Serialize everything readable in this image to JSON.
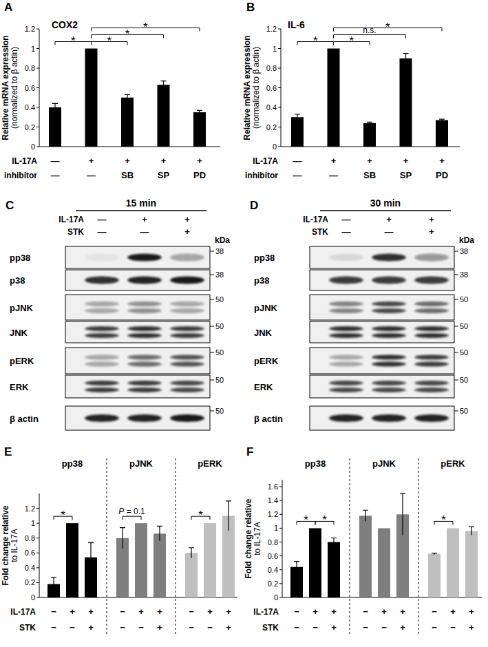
{
  "chart_data": [
    {
      "panel": "A",
      "type": "bar",
      "title": "COX2",
      "y_label": [
        "Relative mRNA expression",
        "(normalized to β actin)"
      ],
      "condition_rows": [
        {
          "label": "IL-17A",
          "values": [
            "—",
            "+",
            "+",
            "+",
            "+"
          ]
        },
        {
          "label": "inhibitor",
          "values": [
            "—",
            "—",
            "SB",
            "SP",
            "PD"
          ]
        }
      ],
      "values": [
        0.4,
        1,
        0.5,
        0.63,
        0.35
      ],
      "errors": [
        0.04,
        null,
        0.03,
        0.04,
        0.02
      ],
      "color": "#000000",
      "ylim": [
        0,
        1.2
      ],
      "yticks": [
        0,
        0.2,
        0.4,
        0.6,
        0.8,
        1,
        1.2
      ],
      "annotations": [
        {
          "from": 0,
          "to": 1,
          "label": "*"
        },
        {
          "from": 1,
          "to": 2,
          "label": "*"
        },
        {
          "from": 1,
          "to": 3,
          "label": "*"
        },
        {
          "from": 1,
          "to": 4,
          "label": "*"
        }
      ]
    },
    {
      "panel": "B",
      "type": "bar",
      "title": "IL-6",
      "y_label": [
        "Relative mRNA expression",
        "(normalized to β actin)"
      ],
      "condition_rows": [
        {
          "label": "IL-17A",
          "values": [
            "—",
            "+",
            "+",
            "+",
            "+"
          ]
        },
        {
          "label": "inhibitor",
          "values": [
            "—",
            "—",
            "SB",
            "SP",
            "PD"
          ]
        }
      ],
      "values": [
        0.3,
        1,
        0.24,
        0.9,
        0.27
      ],
      "errors": [
        0.03,
        null,
        0.01,
        0.05,
        0.01
      ],
      "color": "#000000",
      "ylim": [
        0,
        1.2
      ],
      "yticks": [
        0,
        0.2,
        0.4,
        0.6,
        0.8,
        1,
        1.2
      ],
      "annotations": [
        {
          "from": 0,
          "to": 1,
          "label": "*"
        },
        {
          "from": 1,
          "to": 2,
          "label": "*"
        },
        {
          "from": 1,
          "to": 3,
          "label": "n.s."
        },
        {
          "from": 1,
          "to": 4,
          "label": "*"
        }
      ]
    },
    {
      "panel": "E",
      "type": "bar",
      "y_label": [
        "Fold change relative",
        "to IL-17A"
      ],
      "condition_rows": [
        {
          "label": "IL-17A",
          "values": [
            "−",
            "+",
            "+"
          ]
        },
        {
          "label": "STK",
          "values": [
            "−",
            "−",
            "+"
          ]
        }
      ],
      "ylim": [
        0,
        1.4
      ],
      "yticks": [
        0,
        0.2,
        0.4,
        0.6,
        0.8,
        1,
        1.2
      ],
      "series": [
        {
          "name": "pp38",
          "color": "#000000",
          "values": [
            0.18,
            1,
            0.54
          ],
          "errors": [
            0.09,
            null,
            0.2
          ],
          "annotations": [
            {
              "from": 0,
              "to": 1,
              "label": "*"
            }
          ]
        },
        {
          "name": "pJNK",
          "color": "#7f7f7f",
          "values": [
            0.8,
            1,
            0.86
          ],
          "errors": [
            0.14,
            null,
            0.1
          ],
          "annotations": [
            {
              "from": 0,
              "to": 1,
              "label": "P = 0.1"
            }
          ]
        },
        {
          "name": "pERK",
          "color": "#bfbfbf",
          "values": [
            0.6,
            1,
            1.1
          ],
          "errors": [
            0.07,
            null,
            0.2
          ],
          "annotations": [
            {
              "from": 0,
              "to": 1,
              "label": "*"
            }
          ]
        }
      ]
    },
    {
      "panel": "F",
      "type": "bar",
      "y_label": [
        "Fold change relative",
        "to IL-17A"
      ],
      "condition_rows": [
        {
          "label": "IL-17A",
          "values": [
            "−",
            "+",
            "+"
          ]
        },
        {
          "label": "STK",
          "values": [
            "−",
            "−",
            "+"
          ]
        }
      ],
      "ylim": [
        0,
        1.7
      ],
      "yticks": [
        0,
        0.2,
        0.4,
        0.6,
        0.8,
        1,
        1.2,
        1.4,
        1.6
      ],
      "series": [
        {
          "name": "pp38",
          "color": "#000000",
          "values": [
            0.44,
            1,
            0.8
          ],
          "errors": [
            0.08,
            null,
            0.06
          ],
          "annotations": [
            {
              "from": 0,
              "to": 1,
              "label": "*"
            },
            {
              "from": 1,
              "to": 2,
              "label": "*"
            }
          ]
        },
        {
          "name": "pJNK",
          "color": "#7f7f7f",
          "values": [
            1.18,
            1,
            1.2
          ],
          "errors": [
            0.08,
            null,
            0.3
          ],
          "annotations": []
        },
        {
          "name": "pERK",
          "color": "#bfbfbf",
          "values": [
            0.63,
            1,
            0.96
          ],
          "errors": [
            0.01,
            null,
            0.06
          ],
          "annotations": [
            {
              "from": 0,
              "to": 1,
              "label": "*"
            }
          ]
        }
      ]
    }
  ],
  "blots": [
    {
      "panel": "C",
      "title": "15 min",
      "unit_label": "kDa",
      "condition_rows": [
        {
          "label": "IL-17A",
          "values": [
            "—",
            "+",
            "+"
          ]
        },
        {
          "label": "STK",
          "values": [
            "—",
            "—",
            "+"
          ]
        }
      ],
      "rows": [
        {
          "label": "pp38",
          "bands": 1,
          "intensity": [
            0.05,
            0.95,
            0.35
          ],
          "marker": 38
        },
        {
          "label": "p38",
          "bands": 1,
          "intensity": [
            0.85,
            0.9,
            0.95
          ],
          "marker": 38
        },
        {
          "label": "pJNK",
          "bands": 2,
          "intensity": [
            0.35,
            0.45,
            0.35
          ],
          "marker": 50
        },
        {
          "label": "JNK",
          "bands": 2,
          "intensity": [
            0.8,
            0.85,
            0.8
          ],
          "marker": 50
        },
        {
          "label": "pERK",
          "bands": 2,
          "intensity": [
            0.35,
            0.6,
            0.7
          ],
          "marker": 50
        },
        {
          "label": "ERK",
          "bands": 2,
          "intensity": [
            0.8,
            0.8,
            0.75
          ],
          "marker": 50
        },
        {
          "label": "β actin",
          "bands": 1,
          "intensity": [
            0.9,
            0.9,
            0.95
          ],
          "marker": 50
        }
      ]
    },
    {
      "panel": "D",
      "title": "30 min",
      "unit_label": "kDa",
      "condition_rows": [
        {
          "label": "IL-17A",
          "values": [
            "—",
            "+",
            "+"
          ]
        },
        {
          "label": "STK",
          "values": [
            "—",
            "—",
            "+"
          ]
        }
      ],
      "rows": [
        {
          "label": "pp38",
          "bands": 1,
          "intensity": [
            0.1,
            0.85,
            0.4
          ],
          "marker": 38
        },
        {
          "label": "p38",
          "bands": 1,
          "intensity": [
            0.8,
            0.8,
            0.8
          ],
          "marker": 38
        },
        {
          "label": "pJNK",
          "bands": 2,
          "intensity": [
            0.5,
            0.75,
            0.6
          ],
          "marker": 50
        },
        {
          "label": "JNK",
          "bands": 2,
          "intensity": [
            0.85,
            0.85,
            0.85
          ],
          "marker": 50
        },
        {
          "label": "pERK",
          "bands": 2,
          "intensity": [
            0.3,
            0.85,
            0.8
          ],
          "marker": 50
        },
        {
          "label": "ERK",
          "bands": 2,
          "intensity": [
            0.75,
            0.75,
            0.75
          ],
          "marker": 50
        },
        {
          "label": "β actin",
          "bands": 1,
          "intensity": [
            0.9,
            0.9,
            0.9
          ],
          "marker": 50
        }
      ]
    }
  ]
}
